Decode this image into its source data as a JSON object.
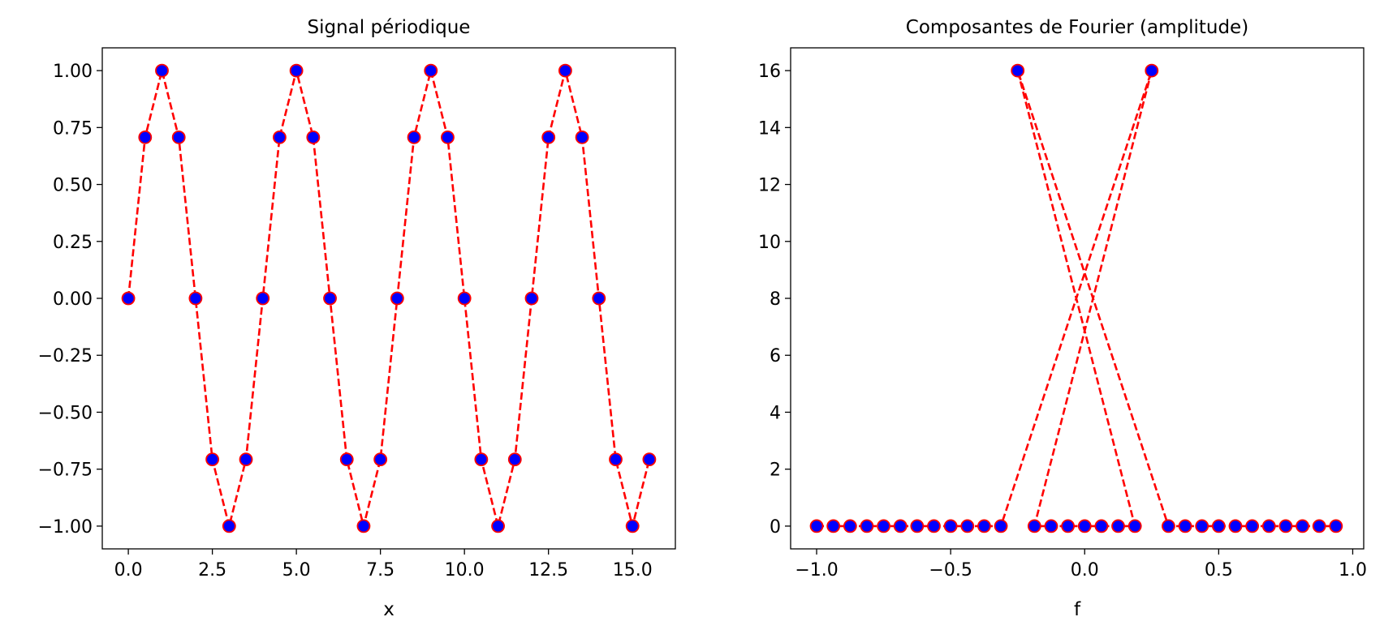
{
  "chart_data": [
    {
      "type": "line",
      "title": "Signal périodique",
      "xlabel": "x",
      "ylabel": "",
      "xlim": [
        -0.775,
        16.275
      ],
      "ylim": [
        -1.1,
        1.1
      ],
      "xticks": [
        0,
        2.5,
        5,
        7.5,
        10,
        12.5,
        15
      ],
      "xtick_labels": [
        "0.0",
        "2.5",
        "5.0",
        "7.5",
        "10.0",
        "12.5",
        "15.0"
      ],
      "yticks": [
        1,
        0.75,
        0.5,
        0.25,
        0,
        -0.25,
        -0.5,
        -0.75,
        -1
      ],
      "ytick_labels": [
        "1.00",
        "0.75",
        "0.50",
        "0.25",
        "0.00",
        "−0.25",
        "−0.50",
        "−0.75",
        "−1.00"
      ],
      "line_style": "dashed",
      "line_color": "#ff0000",
      "marker_face_color": "#0000ff",
      "marker_edge_color": "#ff0000",
      "grid": false,
      "x": [
        0,
        0.5,
        1,
        1.5,
        2,
        2.5,
        3,
        3.5,
        4,
        4.5,
        5,
        5.5,
        6,
        6.5,
        7,
        7.5,
        8,
        8.5,
        9,
        9.5,
        10,
        10.5,
        11,
        11.5,
        12,
        12.5,
        13,
        13.5,
        14,
        14.5,
        15,
        15.5
      ],
      "y": [
        0,
        0.7071,
        1,
        0.7071,
        0,
        -0.7071,
        -1,
        -0.7071,
        0,
        0.7071,
        1,
        0.7071,
        0,
        -0.7071,
        -1,
        -0.7071,
        0,
        0.7071,
        1,
        0.7071,
        0,
        -0.7071,
        -1,
        -0.7071,
        0,
        0.7071,
        1,
        0.7071,
        0,
        -0.7071,
        -1,
        -0.7071
      ]
    },
    {
      "type": "line",
      "title": "Composantes de Fourier (amplitude)",
      "xlabel": "f",
      "ylabel": "",
      "xlim": [
        -1.097,
        1.041
      ],
      "ylim": [
        -0.8,
        16.8
      ],
      "xticks": [
        -1,
        -0.5,
        0,
        0.5,
        1
      ],
      "xtick_labels": [
        "−1.0",
        "−0.5",
        "0.0",
        "0.5",
        "1.0"
      ],
      "yticks": [
        0,
        2,
        4,
        6,
        8,
        10,
        12,
        14,
        16
      ],
      "ytick_labels": [
        "0",
        "2",
        "4",
        "6",
        "8",
        "10",
        "12",
        "14",
        "16"
      ],
      "line_style": "dashed",
      "line_color": "#ff0000",
      "marker_face_color": "#0000ff",
      "marker_edge_color": "#ff0000",
      "grid": false,
      "x": [
        -1,
        -0.9375,
        -0.875,
        -0.8125,
        -0.75,
        -0.6875,
        -0.625,
        -0.5625,
        -0.5,
        -0.4375,
        -0.375,
        -0.3125,
        -0.25,
        -0.1875,
        -0.125,
        -0.0625,
        0,
        0.0625,
        0.125,
        0.1875,
        0.25,
        0.3125,
        0.375,
        0.4375,
        0.5,
        0.5625,
        0.625,
        0.6875,
        0.75,
        0.8125,
        0.875,
        0.9375
      ],
      "y": [
        0,
        0,
        0,
        0,
        0,
        0,
        0,
        0,
        0,
        0,
        0,
        0,
        16,
        0,
        0,
        0,
        0,
        0,
        0,
        0,
        16,
        0,
        0,
        0,
        0,
        0,
        0,
        0,
        0,
        0,
        0,
        0
      ],
      "connect_order": [
        0,
        1,
        2,
        3,
        4,
        5,
        6,
        7,
        8,
        9,
        10,
        11,
        20,
        13,
        14,
        15,
        16,
        17,
        18,
        19,
        12,
        21,
        22,
        23,
        24,
        25,
        26,
        27,
        28,
        29,
        30,
        31
      ]
    }
  ]
}
